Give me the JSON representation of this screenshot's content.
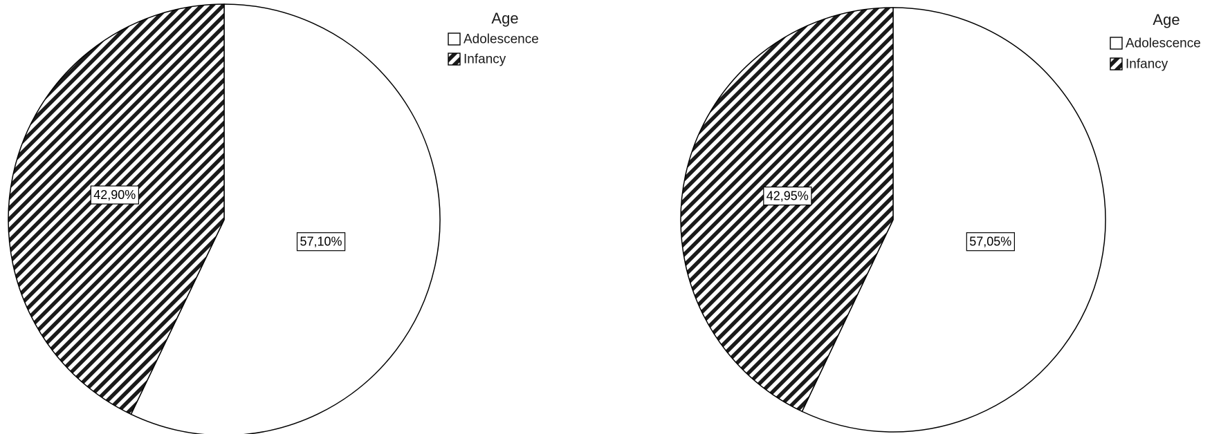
{
  "chart_data": [
    {
      "type": "pie",
      "legend": {
        "title": "Age",
        "placement": "top-right"
      },
      "categories": [
        "Adolescence",
        "Infancy"
      ],
      "values": [
        57.1,
        42.9
      ],
      "data_labels": [
        "57,10%",
        "42,90%"
      ],
      "slice_fills": [
        "white",
        "diagonal-hatch"
      ],
      "start_angle_deg": 0,
      "direction": "clockwise"
    },
    {
      "type": "pie",
      "legend": {
        "title": "Age",
        "placement": "top-right"
      },
      "categories": [
        "Adolescence",
        "Infancy"
      ],
      "values": [
        57.05,
        42.95
      ],
      "data_labels": [
        "57,05%",
        "42,95%"
      ],
      "slice_fills": [
        "white",
        "diagonal-hatch"
      ],
      "start_angle_deg": 0,
      "direction": "clockwise"
    }
  ],
  "colors": {
    "stroke": "#000000",
    "background": "#ffffff",
    "hatch": "#1a1a1a"
  }
}
